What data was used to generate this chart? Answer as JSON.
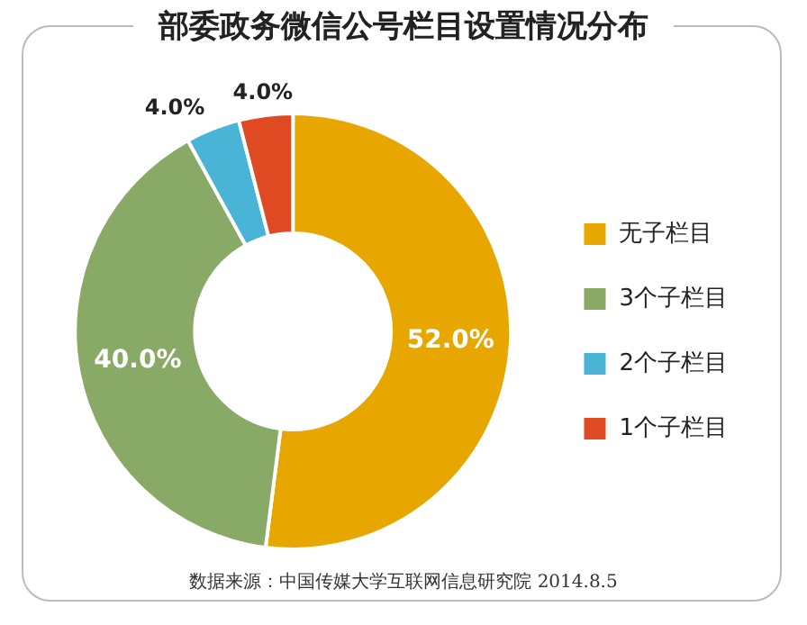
{
  "chart_data": {
    "type": "donut",
    "title": "部委政务微信公号栏目设置情况分布",
    "categories": [
      "无子栏目",
      "3个子栏目",
      "2个子栏目",
      "1个子栏目"
    ],
    "values": [
      52,
      40,
      4,
      4
    ],
    "colors": [
      "#e8a600",
      "#88aa66",
      "#4ab4d6",
      "#e04a22"
    ],
    "value_labels": [
      "52.0%",
      "40.0%",
      "4.0%",
      "4.0%"
    ],
    "legend": "right",
    "annotations": [
      "数据来源：中国传媒大学互联网信息研究院 2014.8.5"
    ]
  }
}
